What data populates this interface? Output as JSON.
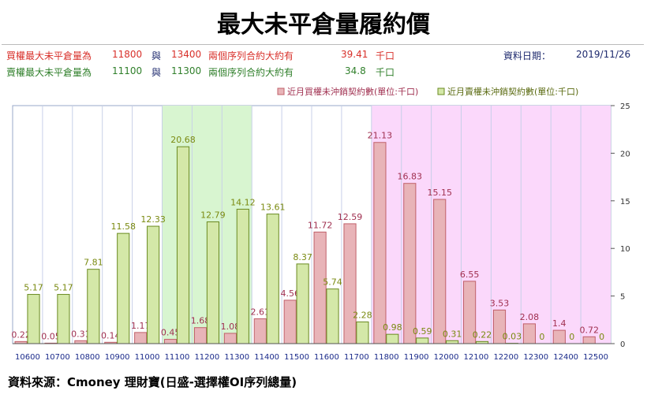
{
  "title": "最大未平倉量履約價",
  "info": {
    "call_row": {
      "label": "買權最大未平倉量為",
      "strike1": "11800",
      "conj": "與",
      "strike2": "13400",
      "text": "兩個序列合約大約有",
      "value": "39.41",
      "unit": "千口"
    },
    "put_row": {
      "label": "賣權最大未平倉量為",
      "strike1": "11100",
      "conj": "與",
      "strike2": "11300",
      "text": "兩個序列合約大約有",
      "value": "34.8",
      "unit": "千口"
    },
    "date_label": "資料日期：",
    "date_value": "2019/11/26"
  },
  "footer": "資料來源：Cmoney 理財寶(日盛-選擇權OI序列總量)",
  "chart_data": {
    "type": "bar",
    "categories": [
      "10600",
      "10700",
      "10800",
      "10900",
      "11000",
      "11100",
      "11200",
      "11300",
      "11400",
      "11500",
      "11600",
      "11700",
      "11800",
      "11900",
      "12000",
      "12100",
      "12200",
      "12300",
      "12400",
      "12500"
    ],
    "series": [
      {
        "name": "近月買權未沖銷契約數(單位:千口)",
        "color": "#e8b4b8",
        "stroke": "#c0606a",
        "label_color": "#a03050",
        "values": [
          0.22,
          0.05,
          0.31,
          0.14,
          1.17,
          0.45,
          1.68,
          1.08,
          2.61,
          4.56,
          11.72,
          12.59,
          21.13,
          16.83,
          15.15,
          6.55,
          3.53,
          2.08,
          1.4,
          0.72
        ]
      },
      {
        "name": "近月賣權未沖銷契約數(單位:千口)",
        "color": "#d4e8a8",
        "stroke": "#6a8a20",
        "label_color": "#7a8a10",
        "values": [
          5.17,
          5.17,
          7.81,
          11.58,
          12.33,
          20.68,
          12.79,
          14.12,
          13.61,
          8.37,
          5.74,
          2.28,
          0.98,
          0.59,
          0.31,
          0.22,
          0.03,
          0,
          0,
          0
        ]
      }
    ],
    "ylim": [
      0,
      25
    ],
    "yticks": [
      0,
      5,
      10,
      15,
      20,
      25
    ],
    "y_axis_side": "right",
    "grid": true,
    "legend": "top-right",
    "highlight_regions": [
      {
        "from": "11100",
        "to": "11300",
        "color": "#d8f5d0"
      },
      {
        "from": "11800",
        "to": "12500",
        "color": "#fbd8fb"
      }
    ]
  }
}
